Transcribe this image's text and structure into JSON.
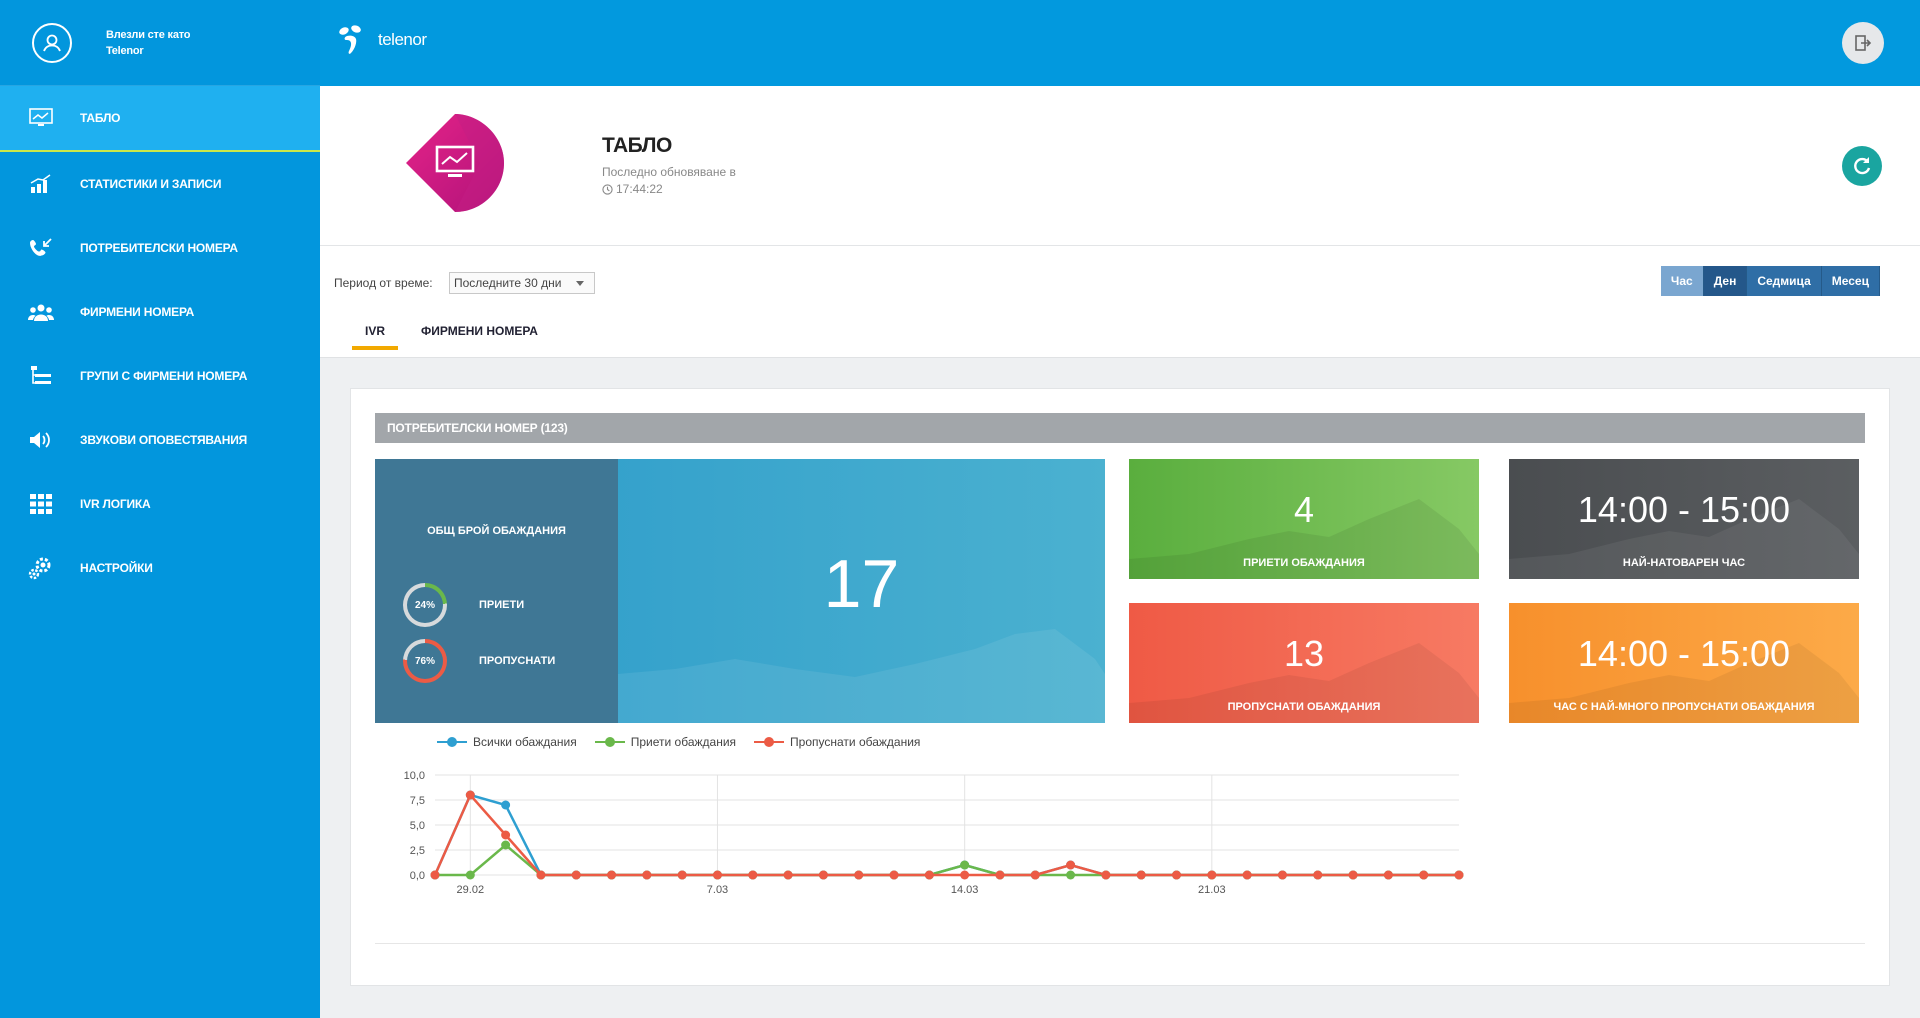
{
  "user": {
    "line1": "Влезли сте като",
    "line2": "Telenor"
  },
  "brand": {
    "name": "telenor"
  },
  "nav": [
    {
      "label": "ТАБЛО",
      "icon": "dashboard-icon",
      "active": true
    },
    {
      "label": "СТАТИСТИКИ И ЗАПИСИ",
      "icon": "bar-chart-icon"
    },
    {
      "label": "ПОТРЕБИТЕЛСКИ НОМЕРА",
      "icon": "phone-incoming-icon"
    },
    {
      "label": "ФИРМЕНИ НОМЕРА",
      "icon": "users-group-icon"
    },
    {
      "label": "ГРУПИ С ФИРМЕНИ НОМЕРА",
      "icon": "list-tree-icon"
    },
    {
      "label": "ЗВУКОВИ ОПОВЕСТЯВАНИЯ",
      "icon": "speaker-icon"
    },
    {
      "label": "IVR ЛОГИКА",
      "icon": "grid-icon"
    },
    {
      "label": "НАСТРОЙКИ",
      "icon": "gears-icon"
    }
  ],
  "header": {
    "title": "ТАБЛО",
    "updated_label": "Последно обновяване в",
    "updated_time": "17:44:22"
  },
  "filter": {
    "label": "Период от време:",
    "value": "Последните 30 дни",
    "ranges": [
      "Час",
      "Ден",
      "Седмица",
      "Месец"
    ],
    "active_range": "Ден"
  },
  "tabs": [
    "IVR",
    "ФИРМЕНИ НОМЕРА"
  ],
  "section": {
    "title": "ПОТРЕБИТЕЛСКИ НОМЕР (123)"
  },
  "summary": {
    "caption": "ОБЩ БРОЙ ОБАЖДАНИЯ",
    "total": "17",
    "accepted_pct": "24%",
    "accepted_pct_value": 24,
    "accepted_label": "ПРИЕТИ",
    "missed_pct": "76%",
    "missed_pct_value": 76,
    "missed_label": "ПРОПУСНАТИ"
  },
  "tiles": {
    "accepted": {
      "value": "4",
      "caption": "ПРИЕТИ ОБАЖДАНИЯ"
    },
    "busiest": {
      "value": "14:00 - 15:00",
      "caption": "НАЙ-НАТОВАРЕН ЧАС"
    },
    "missed": {
      "value": "13",
      "caption": "ПРОПУСНАТИ ОБАЖДАНИЯ"
    },
    "most_missed": {
      "value": "14:00 - 15:00",
      "caption": "ЧАС С НАЙ-МНОГО ПРОПУСНАТИ ОБАЖДАНИЯ"
    }
  },
  "colors": {
    "all": "#2e9fd1",
    "accepted": "#6ab84b",
    "missed": "#ec5b45"
  },
  "chart_data": {
    "type": "line",
    "y_ticks": [
      "10,0",
      "7,5",
      "5,0",
      "2,5",
      "0,0"
    ],
    "ylim": [
      0,
      10
    ],
    "x_tick_labels": [
      {
        "index": 1,
        "label": "29.02"
      },
      {
        "index": 8,
        "label": "7.03"
      },
      {
        "index": 15,
        "label": "14.03"
      },
      {
        "index": 22,
        "label": "21.03"
      }
    ],
    "series": [
      {
        "name": "Всички обаждания",
        "color": "#2e9fd1",
        "values": [
          0,
          8,
          7,
          0,
          0,
          0,
          0,
          0,
          0,
          0,
          0,
          0,
          0,
          0,
          0,
          1,
          0,
          0,
          1,
          0,
          0,
          0,
          0,
          0,
          0,
          0,
          0,
          0,
          0,
          0
        ]
      },
      {
        "name": "Приети обаждания",
        "color": "#6ab84b",
        "values": [
          0,
          0,
          3,
          0,
          0,
          0,
          0,
          0,
          0,
          0,
          0,
          0,
          0,
          0,
          0,
          1,
          0,
          0,
          0,
          0,
          0,
          0,
          0,
          0,
          0,
          0,
          0,
          0,
          0,
          0
        ]
      },
      {
        "name": "Пропуснати обаждания",
        "color": "#ec5b45",
        "values": [
          0,
          8,
          4,
          0,
          0,
          0,
          0,
          0,
          0,
          0,
          0,
          0,
          0,
          0,
          0,
          0,
          0,
          0,
          1,
          0,
          0,
          0,
          0,
          0,
          0,
          0,
          0,
          0,
          0,
          0
        ]
      }
    ]
  }
}
